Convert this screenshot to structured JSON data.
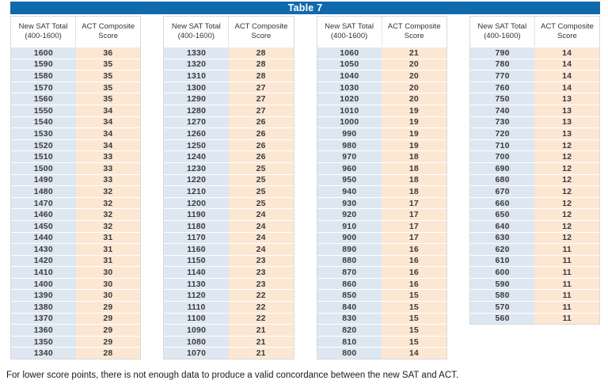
{
  "title": "Table 7",
  "colors": {
    "title_bar_blue": "#1169ad",
    "sat_column_bg": "#dde7f1",
    "act_column_bg": "#fce7d3"
  },
  "header": {
    "sat_line1": "New SAT Total",
    "sat_line2": "(400-1600)",
    "act_line1": "ACT Composite",
    "act_line2": "Score"
  },
  "footnote": "For lower score points, there is not enough data to produce a valid concordance between the new SAT and ACT.",
  "tables": [
    {
      "rows": [
        {
          "sat": "1600",
          "act": "36"
        },
        {
          "sat": "1590",
          "act": "35"
        },
        {
          "sat": "1580",
          "act": "35"
        },
        {
          "sat": "1570",
          "act": "35"
        },
        {
          "sat": "1560",
          "act": "35"
        },
        {
          "sat": "1550",
          "act": "34"
        },
        {
          "sat": "1540",
          "act": "34"
        },
        {
          "sat": "1530",
          "act": "34"
        },
        {
          "sat": "1520",
          "act": "34"
        },
        {
          "sat": "1510",
          "act": "33"
        },
        {
          "sat": "1500",
          "act": "33"
        },
        {
          "sat": "1490",
          "act": "33"
        },
        {
          "sat": "1480",
          "act": "32"
        },
        {
          "sat": "1470",
          "act": "32"
        },
        {
          "sat": "1460",
          "act": "32"
        },
        {
          "sat": "1450",
          "act": "32"
        },
        {
          "sat": "1440",
          "act": "31"
        },
        {
          "sat": "1430",
          "act": "31"
        },
        {
          "sat": "1420",
          "act": "31"
        },
        {
          "sat": "1410",
          "act": "30"
        },
        {
          "sat": "1400",
          "act": "30"
        },
        {
          "sat": "1390",
          "act": "30"
        },
        {
          "sat": "1380",
          "act": "29"
        },
        {
          "sat": "1370",
          "act": "29"
        },
        {
          "sat": "1360",
          "act": "29"
        },
        {
          "sat": "1350",
          "act": "29"
        },
        {
          "sat": "1340",
          "act": "28"
        }
      ]
    },
    {
      "rows": [
        {
          "sat": "1330",
          "act": "28"
        },
        {
          "sat": "1320",
          "act": "28"
        },
        {
          "sat": "1310",
          "act": "28"
        },
        {
          "sat": "1300",
          "act": "27"
        },
        {
          "sat": "1290",
          "act": "27"
        },
        {
          "sat": "1280",
          "act": "27"
        },
        {
          "sat": "1270",
          "act": "26"
        },
        {
          "sat": "1260",
          "act": "26"
        },
        {
          "sat": "1250",
          "act": "26"
        },
        {
          "sat": "1240",
          "act": "26"
        },
        {
          "sat": "1230",
          "act": "25"
        },
        {
          "sat": "1220",
          "act": "25"
        },
        {
          "sat": "1210",
          "act": "25"
        },
        {
          "sat": "1200",
          "act": "25"
        },
        {
          "sat": "1190",
          "act": "24"
        },
        {
          "sat": "1180",
          "act": "24"
        },
        {
          "sat": "1170",
          "act": "24"
        },
        {
          "sat": "1160",
          "act": "24"
        },
        {
          "sat": "1150",
          "act": "23"
        },
        {
          "sat": "1140",
          "act": "23"
        },
        {
          "sat": "1130",
          "act": "23"
        },
        {
          "sat": "1120",
          "act": "22"
        },
        {
          "sat": "1110",
          "act": "22"
        },
        {
          "sat": "1100",
          "act": "22"
        },
        {
          "sat": "1090",
          "act": "21"
        },
        {
          "sat": "1080",
          "act": "21"
        },
        {
          "sat": "1070",
          "act": "21"
        }
      ]
    },
    {
      "rows": [
        {
          "sat": "1060",
          "act": "21"
        },
        {
          "sat": "1050",
          "act": "20"
        },
        {
          "sat": "1040",
          "act": "20"
        },
        {
          "sat": "1030",
          "act": "20"
        },
        {
          "sat": "1020",
          "act": "20"
        },
        {
          "sat": "1010",
          "act": "19"
        },
        {
          "sat": "1000",
          "act": "19"
        },
        {
          "sat": "990",
          "act": "19"
        },
        {
          "sat": "980",
          "act": "19"
        },
        {
          "sat": "970",
          "act": "18"
        },
        {
          "sat": "960",
          "act": "18"
        },
        {
          "sat": "950",
          "act": "18"
        },
        {
          "sat": "940",
          "act": "18"
        },
        {
          "sat": "930",
          "act": "17"
        },
        {
          "sat": "920",
          "act": "17"
        },
        {
          "sat": "910",
          "act": "17"
        },
        {
          "sat": "900",
          "act": "17"
        },
        {
          "sat": "890",
          "act": "16"
        },
        {
          "sat": "880",
          "act": "16"
        },
        {
          "sat": "870",
          "act": "16"
        },
        {
          "sat": "860",
          "act": "16"
        },
        {
          "sat": "850",
          "act": "15"
        },
        {
          "sat": "840",
          "act": "15"
        },
        {
          "sat": "830",
          "act": "15"
        },
        {
          "sat": "820",
          "act": "15"
        },
        {
          "sat": "810",
          "act": "15"
        },
        {
          "sat": "800",
          "act": "14"
        }
      ]
    },
    {
      "rows": [
        {
          "sat": "790",
          "act": "14"
        },
        {
          "sat": "780",
          "act": "14"
        },
        {
          "sat": "770",
          "act": "14"
        },
        {
          "sat": "760",
          "act": "14"
        },
        {
          "sat": "750",
          "act": "13"
        },
        {
          "sat": "740",
          "act": "13"
        },
        {
          "sat": "730",
          "act": "13"
        },
        {
          "sat": "720",
          "act": "13"
        },
        {
          "sat": "710",
          "act": "12"
        },
        {
          "sat": "700",
          "act": "12"
        },
        {
          "sat": "690",
          "act": "12"
        },
        {
          "sat": "680",
          "act": "12"
        },
        {
          "sat": "670",
          "act": "12"
        },
        {
          "sat": "660",
          "act": "12"
        },
        {
          "sat": "650",
          "act": "12"
        },
        {
          "sat": "640",
          "act": "12"
        },
        {
          "sat": "630",
          "act": "12"
        },
        {
          "sat": "620",
          "act": "11"
        },
        {
          "sat": "610",
          "act": "11"
        },
        {
          "sat": "600",
          "act": "11"
        },
        {
          "sat": "590",
          "act": "11"
        },
        {
          "sat": "580",
          "act": "11"
        },
        {
          "sat": "570",
          "act": "11"
        },
        {
          "sat": "560",
          "act": "11"
        }
      ]
    }
  ]
}
